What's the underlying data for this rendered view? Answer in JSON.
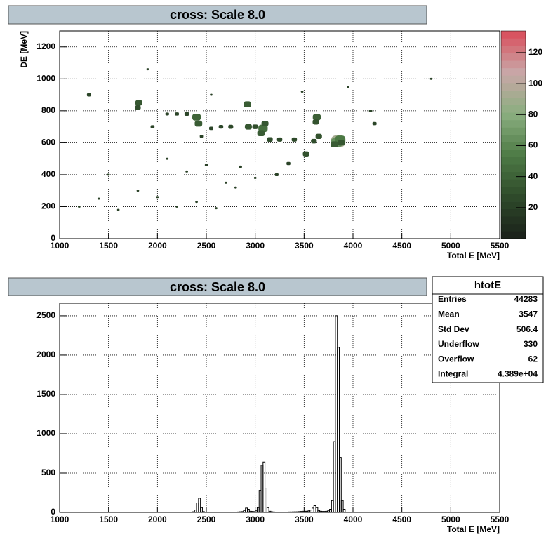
{
  "chart_data": [
    {
      "type": "hist2d",
      "title": "cross: Scale 8.0",
      "xlabel": "Total E [MeV]",
      "ylabel": "DE [MeV]",
      "xlim": [
        1000,
        5500
      ],
      "xticks": [
        1000,
        1500,
        2000,
        2500,
        3000,
        3500,
        4000,
        4500,
        5000,
        5500
      ],
      "ylim": [
        0,
        1300
      ],
      "yticks": [
        0,
        200,
        400,
        600,
        800,
        1000,
        1200
      ],
      "zlim": [
        0,
        134
      ],
      "zticks": [
        20,
        40,
        60,
        80,
        100,
        120
      ],
      "palette": [
        "#1a1f1a",
        "#2e4a2a",
        "#4d7a45",
        "#8aae7f",
        "#c9a7a7",
        "#d94c5a"
      ],
      "grid": true,
      "x": [
        3850,
        3830,
        3870,
        3810,
        3880,
        3080,
        3060,
        3100,
        2400,
        2420,
        3630,
        3620,
        2920,
        1810,
        1800,
        2930,
        3000,
        3520,
        3650,
        3600,
        3250,
        3400,
        3150,
        2750,
        2650,
        2550,
        2300,
        2200,
        2100,
        1300,
        1950,
        3340,
        3220,
        4220,
        4180,
        2450,
        2850,
        2500,
        1200,
        1400,
        1600,
        1800,
        2000,
        2200,
        2400,
        2600,
        2800,
        3000,
        1500,
        2100,
        2700,
        2300,
        4800,
        1900,
        2550,
        3480,
        3950
      ],
      "y": [
        610,
        600,
        620,
        590,
        600,
        690,
        660,
        720,
        760,
        720,
        760,
        730,
        840,
        850,
        820,
        700,
        700,
        530,
        640,
        610,
        620,
        620,
        620,
        700,
        700,
        690,
        780,
        780,
        780,
        900,
        700,
        470,
        400,
        720,
        800,
        640,
        450,
        460,
        200,
        250,
        180,
        300,
        260,
        200,
        230,
        190,
        320,
        380,
        400,
        500,
        350,
        420,
        1000,
        1060,
        900,
        920,
        950
      ],
      "values": [
        130,
        80,
        60,
        30,
        25,
        50,
        30,
        25,
        40,
        30,
        35,
        20,
        30,
        25,
        15,
        25,
        15,
        20,
        20,
        15,
        12,
        12,
        15,
        10,
        8,
        6,
        8,
        5,
        4,
        6,
        5,
        5,
        4,
        6,
        3,
        3,
        2,
        2,
        1,
        1,
        1,
        1,
        1,
        1,
        1,
        1,
        1,
        1,
        1,
        1,
        1,
        1,
        1,
        1,
        1,
        1,
        1
      ]
    },
    {
      "type": "histogram",
      "title": "cross: Scale 8.0",
      "xlabel": "Total E [MeV]",
      "color": "#000000",
      "xlim": [
        1000,
        5500
      ],
      "xticks": [
        1000,
        1500,
        2000,
        2500,
        3000,
        3500,
        4000,
        4500,
        5000,
        5500
      ],
      "ylim": [
        0,
        2660
      ],
      "yticks": [
        0,
        500,
        1000,
        1500,
        2000,
        2500
      ],
      "grid": true,
      "bins": [
        2340,
        2360,
        2380,
        2400,
        2420,
        2440,
        2460,
        2480,
        2500,
        2520,
        2540,
        2560,
        2580,
        2600,
        2620,
        2640,
        2660,
        2680,
        2700,
        2720,
        2740,
        2760,
        2780,
        2800,
        2820,
        2840,
        2860,
        2880,
        2900,
        2920,
        2940,
        2960,
        2980,
        3000,
        3020,
        3040,
        3060,
        3080,
        3100,
        3120,
        3140,
        3160,
        3180,
        3200,
        3220,
        3240,
        3260,
        3280,
        3300,
        3320,
        3340,
        3360,
        3380,
        3400,
        3420,
        3440,
        3460,
        3480,
        3500,
        3520,
        3540,
        3560,
        3580,
        3600,
        3620,
        3640,
        3660,
        3680,
        3700,
        3720,
        3740,
        3760,
        3780,
        3800,
        3820,
        3840,
        3860,
        3880,
        3900,
        3920
      ],
      "values": [
        5,
        8,
        30,
        120,
        180,
        60,
        10,
        5,
        3,
        3,
        2,
        2,
        2,
        2,
        2,
        2,
        2,
        3,
        3,
        3,
        3,
        4,
        4,
        5,
        6,
        8,
        10,
        25,
        55,
        40,
        15,
        12,
        10,
        20,
        60,
        280,
        600,
        640,
        300,
        60,
        15,
        8,
        6,
        5,
        5,
        5,
        5,
        5,
        5,
        5,
        6,
        6,
        7,
        7,
        8,
        10,
        12,
        15,
        15,
        15,
        20,
        30,
        55,
        85,
        60,
        25,
        15,
        12,
        12,
        15,
        20,
        40,
        150,
        900,
        2500,
        2100,
        700,
        150,
        40
      ],
      "stats": {
        "title": "htotE",
        "rows": [
          {
            "label": "Entries",
            "value": 44283
          },
          {
            "label": "Mean",
            "value": 3547
          },
          {
            "label": "Std Dev",
            "value": 506.4
          },
          {
            "label": "Underflow",
            "value": 330
          },
          {
            "label": "Overflow",
            "value": 62
          },
          {
            "label": "Integral",
            "value": "4.389e+04"
          }
        ]
      }
    }
  ]
}
